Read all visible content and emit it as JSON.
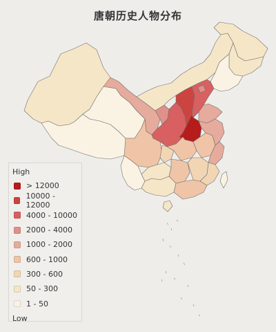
{
  "title": "唐朝历史人物分布",
  "legend": {
    "high_label": "High",
    "low_label": "Low",
    "items": [
      {
        "label": "> 12000",
        "color": "#b71c1c"
      },
      {
        "label": "10000 - 12000",
        "color": "#cc4440"
      },
      {
        "label": "4000 - 10000",
        "color": "#d86060"
      },
      {
        "label": "2000 - 4000",
        "color": "#e0908a"
      },
      {
        "label": "1000 - 2000",
        "color": "#e6ab9c"
      },
      {
        "label": "600 - 1000",
        "color": "#efc4a7"
      },
      {
        "label": "300 - 600",
        "color": "#f2d6b4"
      },
      {
        "label": "50 - 300",
        "color": "#f5e6c8"
      },
      {
        "label": "1 - 50",
        "color": "#faf3e4"
      }
    ]
  },
  "regions": [
    {
      "name": "Xinjiang",
      "tier": 7
    },
    {
      "name": "Tibet",
      "tier": 8
    },
    {
      "name": "Qinghai",
      "tier": 8
    },
    {
      "name": "Gansu",
      "tier": 4
    },
    {
      "name": "Inner Mongolia",
      "tier": 7
    },
    {
      "name": "Heilongjiang",
      "tier": 7
    },
    {
      "name": "Jilin",
      "tier": 7
    },
    {
      "name": "Liaoning",
      "tier": 8
    },
    {
      "name": "Ningxia",
      "tier": 3
    },
    {
      "name": "Shaanxi",
      "tier": 2
    },
    {
      "name": "Shanxi",
      "tier": 1
    },
    {
      "name": "Hebei",
      "tier": 2
    },
    {
      "name": "Beijing",
      "tier": 3
    },
    {
      "name": "Shandong",
      "tier": 4
    },
    {
      "name": "Henan",
      "tier": 0
    },
    {
      "name": "Sichuan",
      "tier": 5
    },
    {
      "name": "Chongqing",
      "tier": 6
    },
    {
      "name": "Hubei",
      "tier": 5
    },
    {
      "name": "Anhui",
      "tier": 5
    },
    {
      "name": "Jiangsu",
      "tier": 4
    },
    {
      "name": "Zhejiang",
      "tier": 4
    },
    {
      "name": "Yunnan",
      "tier": 8
    },
    {
      "name": "Guizhou",
      "tier": 7
    },
    {
      "name": "Hunan",
      "tier": 5
    },
    {
      "name": "Jiangxi",
      "tier": 6
    },
    {
      "name": "Fujian",
      "tier": 6
    },
    {
      "name": "Guangxi",
      "tier": 7
    },
    {
      "name": "Guangdong",
      "tier": 5
    },
    {
      "name": "Taiwan",
      "tier": 8
    },
    {
      "name": "Hainan",
      "tier": 7
    }
  ]
}
